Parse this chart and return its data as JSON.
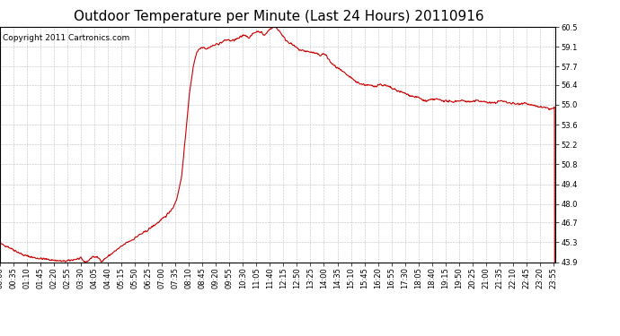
{
  "title": "Outdoor Temperature per Minute (Last 24 Hours) 20110916",
  "copyright_text": "Copyright 2011 Cartronics.com",
  "line_color": "#cc0000",
  "background_color": "#ffffff",
  "plot_bg_color": "#ffffff",
  "grid_color": "#c0c0c0",
  "yticks": [
    43.9,
    45.3,
    46.7,
    48.0,
    49.4,
    50.8,
    52.2,
    53.6,
    55.0,
    56.4,
    57.7,
    59.1,
    60.5
  ],
  "ymin": 43.9,
  "ymax": 60.5,
  "title_fontsize": 11,
  "copyright_fontsize": 6.5,
  "tick_fontsize": 6.0,
  "line_width": 0.8,
  "xtick_interval": 35
}
